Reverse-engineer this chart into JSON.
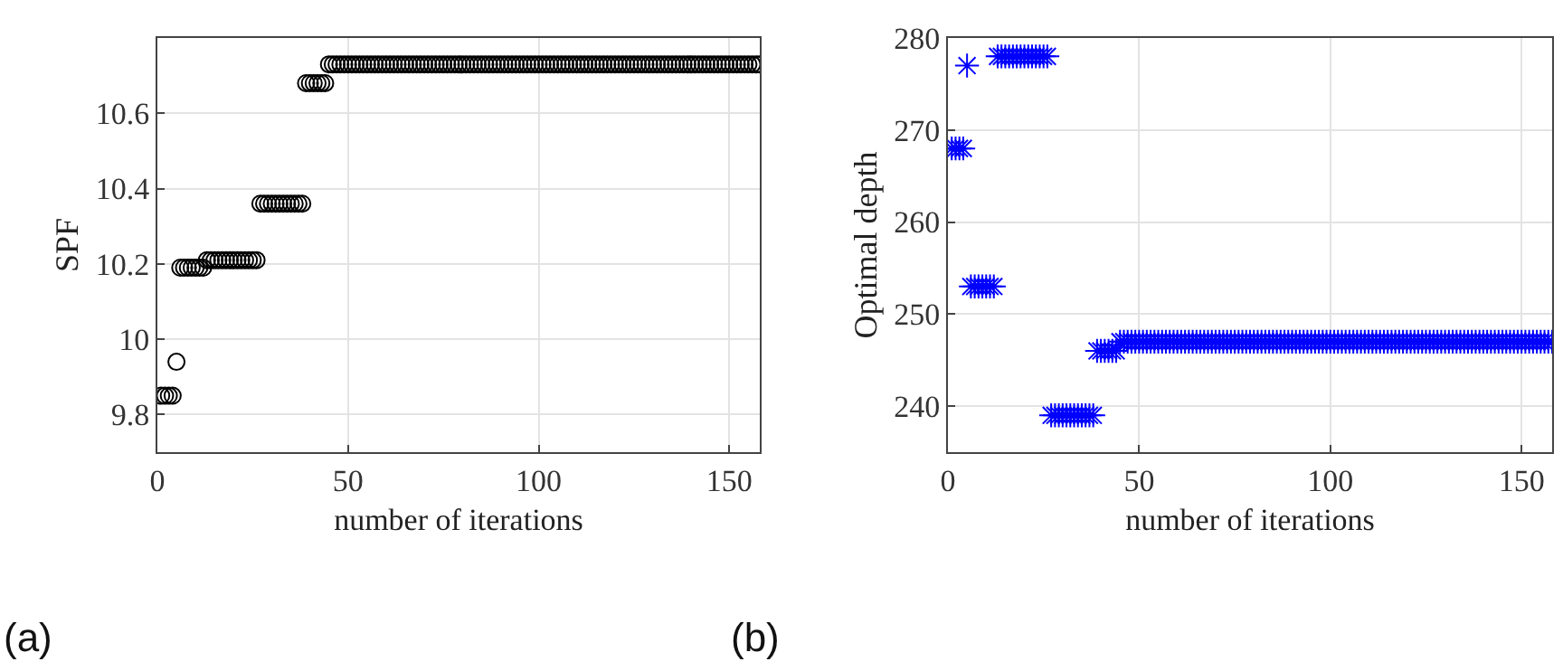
{
  "chart_data": [
    {
      "type": "scatter",
      "xlabel": "number of iterations",
      "ylabel": "SPF",
      "annotations": [
        "(a)"
      ],
      "x": [
        1,
        2,
        3,
        4,
        5,
        6,
        7,
        8,
        9,
        10,
        11,
        12,
        13,
        14,
        15,
        16,
        17,
        18,
        19,
        20,
        21,
        22,
        23,
        24,
        25,
        26,
        27,
        28,
        29,
        30,
        31,
        32,
        33,
        34,
        35,
        36,
        37,
        38,
        39,
        40,
        41,
        42,
        43,
        44,
        45,
        46,
        47,
        48,
        49,
        50,
        51,
        52,
        53,
        54,
        55,
        56,
        57,
        58,
        59,
        60,
        61,
        62,
        63,
        64,
        65,
        66,
        67,
        68,
        69,
        70,
        71,
        72,
        73,
        74,
        75,
        76,
        77,
        78,
        79,
        80,
        81,
        82,
        83,
        84,
        85,
        86,
        87,
        88,
        89,
        90,
        91,
        92,
        93,
        94,
        95,
        96,
        97,
        98,
        99,
        100,
        101,
        102,
        103,
        104,
        105,
        106,
        107,
        108,
        109,
        110,
        111,
        112,
        113,
        114,
        115,
        116,
        117,
        118,
        119,
        120,
        121,
        122,
        123,
        124,
        125,
        126,
        127,
        128,
        129,
        130,
        131,
        132,
        133,
        134,
        135,
        136,
        137,
        138,
        139,
        140,
        141,
        142,
        143,
        144,
        145,
        146,
        147,
        148,
        149,
        150,
        151,
        152,
        153,
        154,
        155,
        156,
        157,
        158
      ],
      "series": [
        {
          "color": "#000000",
          "values": [
            9.85,
            9.85,
            9.85,
            9.85,
            9.94,
            10.19,
            10.19,
            10.19,
            10.19,
            10.19,
            10.19,
            10.19,
            10.21,
            10.21,
            10.21,
            10.21,
            10.21,
            10.21,
            10.21,
            10.21,
            10.21,
            10.21,
            10.21,
            10.21,
            10.21,
            10.21,
            10.36,
            10.36,
            10.36,
            10.36,
            10.36,
            10.36,
            10.36,
            10.36,
            10.36,
            10.36,
            10.36,
            10.36,
            10.68,
            10.68,
            10.68,
            10.68,
            10.68,
            10.68,
            10.73,
            10.73,
            10.73,
            10.73,
            10.73,
            10.73,
            10.73,
            10.73,
            10.73,
            10.73,
            10.73,
            10.73,
            10.73,
            10.73,
            10.73,
            10.73,
            10.73,
            10.73,
            10.73,
            10.73,
            10.73,
            10.73,
            10.73,
            10.73,
            10.73,
            10.73,
            10.73,
            10.73,
            10.73,
            10.73,
            10.73,
            10.73,
            10.73,
            10.73,
            10.73,
            10.73,
            10.73,
            10.73,
            10.73,
            10.73,
            10.73,
            10.73,
            10.73,
            10.73,
            10.73,
            10.73,
            10.73,
            10.73,
            10.73,
            10.73,
            10.73,
            10.73,
            10.73,
            10.73,
            10.73,
            10.73,
            10.73,
            10.73,
            10.73,
            10.73,
            10.73,
            10.73,
            10.73,
            10.73,
            10.73,
            10.73,
            10.73,
            10.73,
            10.73,
            10.73,
            10.73,
            10.73,
            10.73,
            10.73,
            10.73,
            10.73,
            10.73,
            10.73,
            10.73,
            10.73,
            10.73,
            10.73,
            10.73,
            10.73,
            10.73,
            10.73,
            10.73,
            10.73,
            10.73,
            10.73,
            10.73,
            10.73,
            10.73,
            10.73,
            10.73,
            10.73,
            10.73,
            10.73,
            10.73,
            10.73,
            10.73,
            10.73,
            10.73,
            10.73,
            10.73,
            10.73,
            10.73,
            10.73,
            10.73,
            10.73,
            10.73,
            10.73,
            10.73,
            10.73
          ]
        }
      ],
      "xlim": [
        0,
        158
      ],
      "ylim": [
        9.7,
        10.8
      ],
      "xticks": [
        0,
        50,
        100,
        150
      ],
      "yticks": [
        9.8,
        10,
        10.2,
        10.4,
        10.6
      ],
      "grid": true,
      "marker": "circle"
    },
    {
      "type": "scatter",
      "xlabel": "number of iterations",
      "ylabel": "Optimal depth",
      "annotations": [
        "(b)"
      ],
      "x": [
        1,
        2,
        3,
        4,
        5,
        6,
        7,
        8,
        9,
        10,
        11,
        12,
        13,
        14,
        15,
        16,
        17,
        18,
        19,
        20,
        21,
        22,
        23,
        24,
        25,
        26,
        27,
        28,
        29,
        30,
        31,
        32,
        33,
        34,
        35,
        36,
        37,
        38,
        39,
        40,
        41,
        42,
        43,
        44,
        45,
        46,
        47,
        48,
        49,
        50,
        51,
        52,
        53,
        54,
        55,
        56,
        57,
        58,
        59,
        60,
        61,
        62,
        63,
        64,
        65,
        66,
        67,
        68,
        69,
        70,
        71,
        72,
        73,
        74,
        75,
        76,
        77,
        78,
        79,
        80,
        81,
        82,
        83,
        84,
        85,
        86,
        87,
        88,
        89,
        90,
        91,
        92,
        93,
        94,
        95,
        96,
        97,
        98,
        99,
        100,
        101,
        102,
        103,
        104,
        105,
        106,
        107,
        108,
        109,
        110,
        111,
        112,
        113,
        114,
        115,
        116,
        117,
        118,
        119,
        120,
        121,
        122,
        123,
        124,
        125,
        126,
        127,
        128,
        129,
        130,
        131,
        132,
        133,
        134,
        135,
        136,
        137,
        138,
        139,
        140,
        141,
        142,
        143,
        144,
        145,
        146,
        147,
        148,
        149,
        150,
        151,
        152,
        153,
        154,
        155,
        156,
        157,
        158
      ],
      "series": [
        {
          "color": "#0000ff",
          "values": [
            268,
            268,
            268,
            268,
            277,
            253,
            253,
            253,
            253,
            253,
            253,
            253,
            278,
            278,
            278,
            278,
            278,
            278,
            278,
            278,
            278,
            278,
            278,
            278,
            278,
            278,
            239,
            239,
            239,
            239,
            239,
            239,
            239,
            239,
            239,
            239,
            239,
            239,
            246,
            246,
            246,
            246,
            246,
            246,
            247,
            247,
            247,
            247,
            247,
            247,
            247,
            247,
            247,
            247,
            247,
            247,
            247,
            247,
            247,
            247,
            247,
            247,
            247,
            247,
            247,
            247,
            247,
            247,
            247,
            247,
            247,
            247,
            247,
            247,
            247,
            247,
            247,
            247,
            247,
            247,
            247,
            247,
            247,
            247,
            247,
            247,
            247,
            247,
            247,
            247,
            247,
            247,
            247,
            247,
            247,
            247,
            247,
            247,
            247,
            247,
            247,
            247,
            247,
            247,
            247,
            247,
            247,
            247,
            247,
            247,
            247,
            247,
            247,
            247,
            247,
            247,
            247,
            247,
            247,
            247,
            247,
            247,
            247,
            247,
            247,
            247,
            247,
            247,
            247,
            247,
            247,
            247,
            247,
            247,
            247,
            247,
            247,
            247,
            247,
            247,
            247,
            247,
            247,
            247,
            247,
            247,
            247,
            247,
            247,
            247,
            247,
            247,
            247,
            247,
            247,
            247,
            247,
            247
          ]
        }
      ],
      "xlim": [
        0,
        158
      ],
      "ylim": [
        235,
        280
      ],
      "xticks": [
        0,
        50,
        100,
        150
      ],
      "yticks": [
        240,
        250,
        260,
        270,
        280
      ],
      "grid": true,
      "marker": "cross"
    }
  ]
}
